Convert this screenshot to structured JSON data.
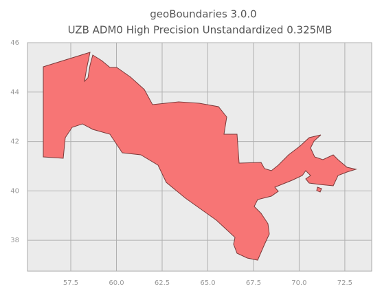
{
  "chart_data": {
    "type": "map",
    "title": "geoBoundaries 3.0.0",
    "subtitle": "UZB ADM0 High Precision Unstandardized 0.325MB",
    "xlim": [
      55.13,
      73.97
    ],
    "ylim": [
      36.75,
      46.0
    ],
    "xticks": [
      57.5,
      {
        "value": 60,
        "label": "60.0"
      },
      62.5,
      {
        "value": 65,
        "label": "65.0"
      },
      67.5,
      {
        "value": 70,
        "label": "70.0"
      },
      72.5
    ],
    "yticks": [
      38,
      40,
      42,
      44,
      46
    ],
    "grid": true,
    "color": "#f77575"
  }
}
